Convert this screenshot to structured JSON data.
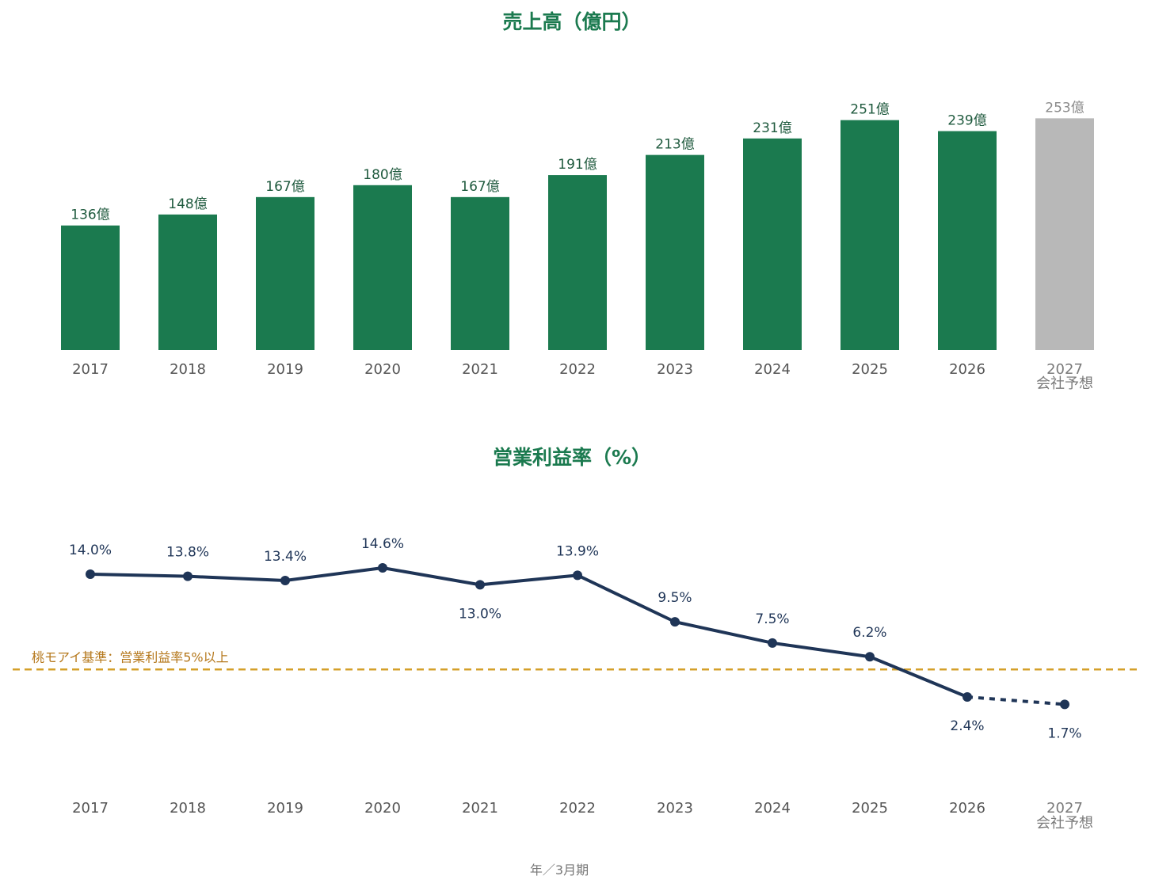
{
  "chart_data": [
    {
      "type": "bar",
      "title": "売上高（億円）",
      "categories": [
        "2017",
        "2018",
        "2019",
        "2020",
        "2021",
        "2022",
        "2023",
        "2024",
        "2025",
        "2026",
        "2027"
      ],
      "category_sublabels": [
        "",
        "",
        "",
        "",
        "",
        "",
        "",
        "",
        "",
        "",
        "会社予想"
      ],
      "values": [
        136,
        148,
        167,
        180,
        167,
        191,
        213,
        231,
        251,
        239,
        253
      ],
      "value_labels": [
        "136億",
        "148億",
        "167億",
        "180億",
        "167億",
        "191億",
        "213億",
        "231億",
        "251億",
        "239億",
        "253億"
      ],
      "forecast_index": 10,
      "ylim": [
        0,
        300
      ],
      "colors": {
        "actual": "#1b7a4f",
        "forecast": "#b8b8b8"
      },
      "grid": false
    },
    {
      "type": "line",
      "title": "営業利益率（%）",
      "categories": [
        "2017",
        "2018",
        "2019",
        "2020",
        "2021",
        "2022",
        "2023",
        "2024",
        "2025",
        "2026",
        "2027"
      ],
      "category_sublabels": [
        "",
        "",
        "",
        "",
        "",
        "",
        "",
        "",
        "",
        "",
        "会社予想"
      ],
      "values": [
        14.0,
        13.8,
        13.4,
        14.6,
        13.0,
        13.9,
        9.5,
        7.5,
        6.2,
        2.4,
        1.7
      ],
      "value_labels": [
        "14.0%",
        "13.8%",
        "13.4%",
        "14.6%",
        "13.0%",
        "13.9%",
        "9.5%",
        "7.5%",
        "6.2%",
        "2.4%",
        "1.7%"
      ],
      "label_position": [
        "above",
        "above",
        "above",
        "above",
        "below",
        "above",
        "above",
        "above",
        "above",
        "below",
        "below"
      ],
      "forecast_index": 10,
      "reference_line": {
        "value": 5,
        "label": "桃モアイ基準：営業利益率5%以上",
        "color": "#d4a02a"
      },
      "ylim": [
        -5,
        20
      ],
      "colors": {
        "line": "#1f3557"
      },
      "grid": false
    }
  ],
  "footer": "年／3月期"
}
